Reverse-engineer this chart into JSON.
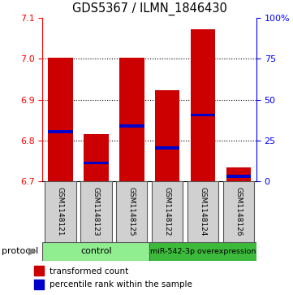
{
  "title": "GDS5367 / ILMN_1846430",
  "samples": [
    "GSM1148121",
    "GSM1148123",
    "GSM1148125",
    "GSM1148122",
    "GSM1148124",
    "GSM1148126"
  ],
  "bar_bottoms": [
    6.7,
    6.7,
    6.7,
    6.7,
    6.7,
    6.7
  ],
  "bar_tops": [
    7.002,
    6.815,
    7.003,
    6.922,
    7.072,
    6.735
  ],
  "blue_positions": [
    6.822,
    6.745,
    6.835,
    6.782,
    6.862,
    6.712
  ],
  "ylim": [
    6.7,
    7.1
  ],
  "yticks_left": [
    6.7,
    6.8,
    6.9,
    7.0,
    7.1
  ],
  "right_tick_vals": [
    6.7,
    6.8,
    6.9,
    7.0,
    7.1
  ],
  "right_tick_labels": [
    "0",
    "25",
    "50",
    "75",
    "100%"
  ],
  "grid_lines": [
    6.8,
    6.9,
    7.0
  ],
  "bar_color": "#cc0000",
  "blue_color": "#0000cc",
  "bar_width": 0.7,
  "label_box_color": "#d0d0d0",
  "control_color": "#90ee90",
  "overexp_color": "#3cba3c",
  "legend_red": "transformed count",
  "legend_blue": "percentile rank within the sample",
  "control_samples": 3,
  "n_samples": 6
}
